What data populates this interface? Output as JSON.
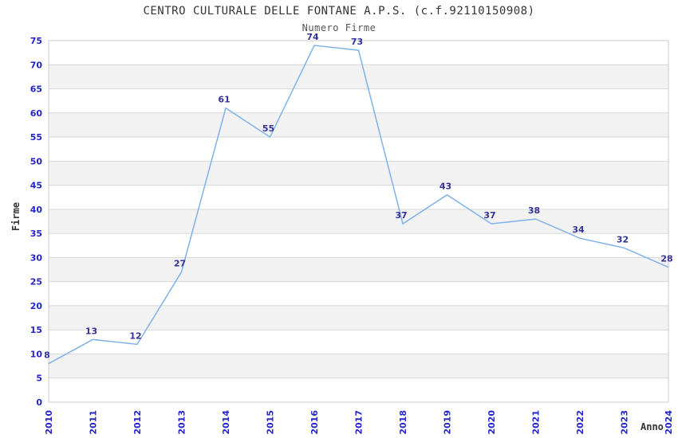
{
  "header": {
    "title": "CENTRO CULTURALE DELLE FONTANE A.P.S. (c.f.92110150908)",
    "subtitle": "Numero Firme"
  },
  "chart_data": {
    "type": "line",
    "title": "CENTRO CULTURALE DELLE FONTANE A.P.S. (c.f.92110150908)",
    "subtitle": "Numero Firme",
    "xlabel": "Anno",
    "ylabel": "Firme",
    "categories": [
      "2010",
      "2011",
      "2012",
      "2013",
      "2014",
      "2015",
      "2016",
      "2017",
      "2018",
      "2019",
      "2020",
      "2021",
      "2022",
      "2023",
      "2024"
    ],
    "values": [
      8,
      13,
      12,
      27,
      61,
      55,
      74,
      73,
      37,
      43,
      37,
      38,
      34,
      32,
      28
    ],
    "data_labels": [
      "8",
      "13",
      "12",
      "27",
      "61",
      "55",
      "74",
      "73",
      "37",
      "43",
      "37",
      "38",
      "34",
      "32",
      "28"
    ],
    "ylim": [
      0,
      75
    ],
    "ytick_step": 5,
    "grid": true,
    "alternating_bands": true,
    "legend": "none",
    "colors": {
      "line": "#7fb2e8",
      "tick_label": "#2424cd",
      "data_label": "#333399",
      "band_gray": "#f2f2f2",
      "band_white": "#ffffff",
      "gridline": "#d8d8d8",
      "plot_border": "#cccccc",
      "title": "#333333",
      "subtitle": "#555555",
      "axis_title": "#333333"
    }
  }
}
